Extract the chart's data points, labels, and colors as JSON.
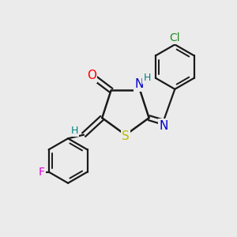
{
  "bg_color": "#ebebeb",
  "bond_color": "#1a1a1a",
  "atom_colors": {
    "O": "#ff0000",
    "N": "#0000cc",
    "S": "#bbbb00",
    "H_label": "#008080",
    "Cl": "#228B22",
    "F": "#dd00dd"
  }
}
